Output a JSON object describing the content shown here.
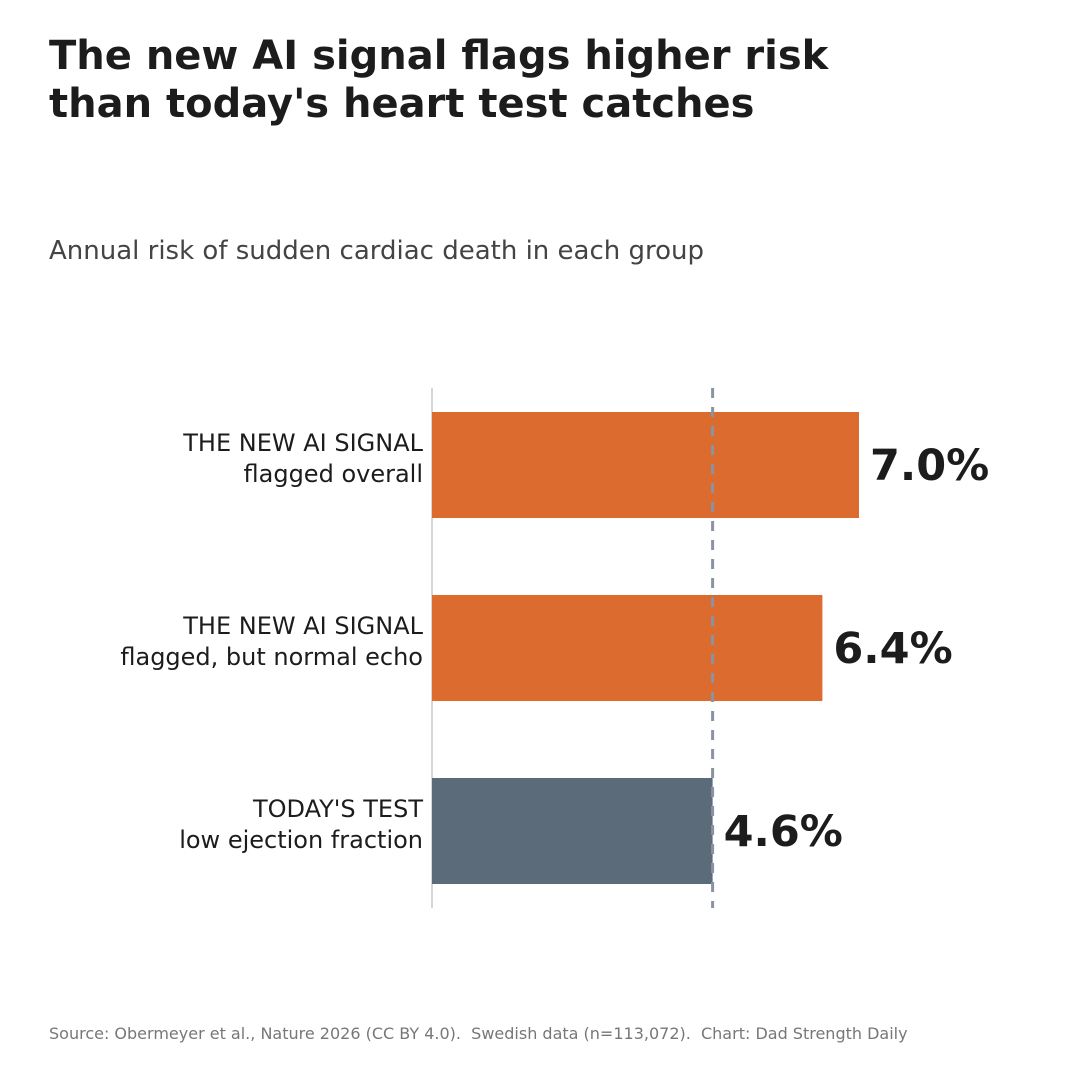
{
  "header": {
    "title": "The new AI signal flags higher risk\nthan today's heart test catches",
    "subtitle": "Annual risk of sudden cardiac death in each group"
  },
  "footer": {
    "source": "Source: Obermeyer et al., Nature 2026 (CC BY 4.0).  Swedish data (n=113,072).  Chart: Dad Strength Daily"
  },
  "chart_data": {
    "type": "bar",
    "orientation": "horizontal",
    "categories": [
      [
        "THE NEW AI SIGNAL",
        "flagged overall"
      ],
      [
        "THE NEW AI SIGNAL",
        "flagged, but normal echo"
      ],
      [
        "TODAY'S TEST",
        "low ejection fraction"
      ]
    ],
    "values": [
      7.0,
      6.4,
      4.6
    ],
    "value_labels": [
      "7.0%",
      "6.4%",
      "4.6%"
    ],
    "colors": [
      "#dc6b30",
      "#dc6b30",
      "#5c6b7a"
    ],
    "reference_line": {
      "value": 4.6,
      "style": "dashed",
      "color": "#8a94a0"
    },
    "xlim": [
      0,
      10
    ],
    "grid": false,
    "title": "The new AI signal flags higher risk than today's heart test catches",
    "subtitle": "Annual risk of sudden cardiac death in each group",
    "xlabel": "",
    "ylabel": ""
  }
}
